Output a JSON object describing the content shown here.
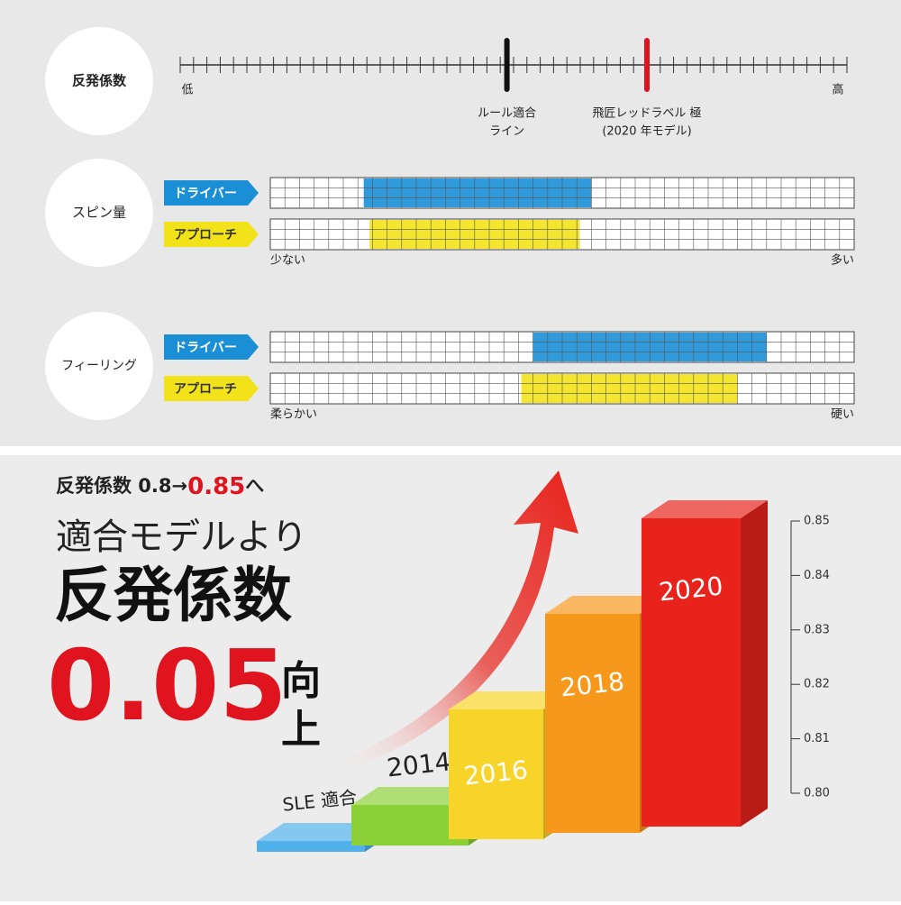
{
  "coefficient": {
    "label": "反発係数",
    "low": "低",
    "high": "高",
    "markers": [
      {
        "lines": [
          "ルール適合",
          "ライン"
        ],
        "position": 49,
        "color": "#111111"
      },
      {
        "lines": [
          "飛匠レッドラベル 極",
          "(2020 年モデル)"
        ],
        "position": 70,
        "color": "#e0141e"
      }
    ]
  },
  "spin": {
    "label": "スピン量",
    "low": "少ない",
    "high": "多い",
    "rows": [
      {
        "name": "ドライバー",
        "color": "#1a8fd6",
        "range": [
          16,
          55
        ]
      },
      {
        "name": "アプローチ",
        "color": "#f2e21a",
        "range": [
          17,
          53
        ]
      }
    ]
  },
  "feeling": {
    "label": "フィーリング",
    "low": "柔らかい",
    "high": "硬い",
    "rows": [
      {
        "name": "ドライバー",
        "color": "#1a8fd6",
        "range": [
          45,
          85
        ]
      },
      {
        "name": "アプローチ",
        "color": "#f2e21a",
        "range": [
          43,
          80
        ]
      }
    ]
  },
  "headline": {
    "prefix": "反発係数 0.8→",
    "highlight": "0.85",
    "suffix": "へ",
    "line2": "適合モデルより",
    "line3": "反発係数",
    "amount": "0.05",
    "verb": [
      "向",
      "上"
    ]
  },
  "chart_data": {
    "type": "bar3d",
    "categories": [
      "SLE 適合",
      "2014",
      "2016",
      "2018",
      "2020"
    ],
    "values": [
      0.8,
      0.805,
      0.82,
      0.835,
      0.85
    ],
    "colors": [
      "#4fb0ea",
      "#8cd038",
      "#f7d42a",
      "#f5981c",
      "#e8231c"
    ],
    "ylim": [
      0.8,
      0.85
    ],
    "yticks": [
      {
        "value": 0.8,
        "label": "0.80"
      },
      0.81,
      0.82,
      0.83,
      0.84,
      0.85
    ]
  }
}
